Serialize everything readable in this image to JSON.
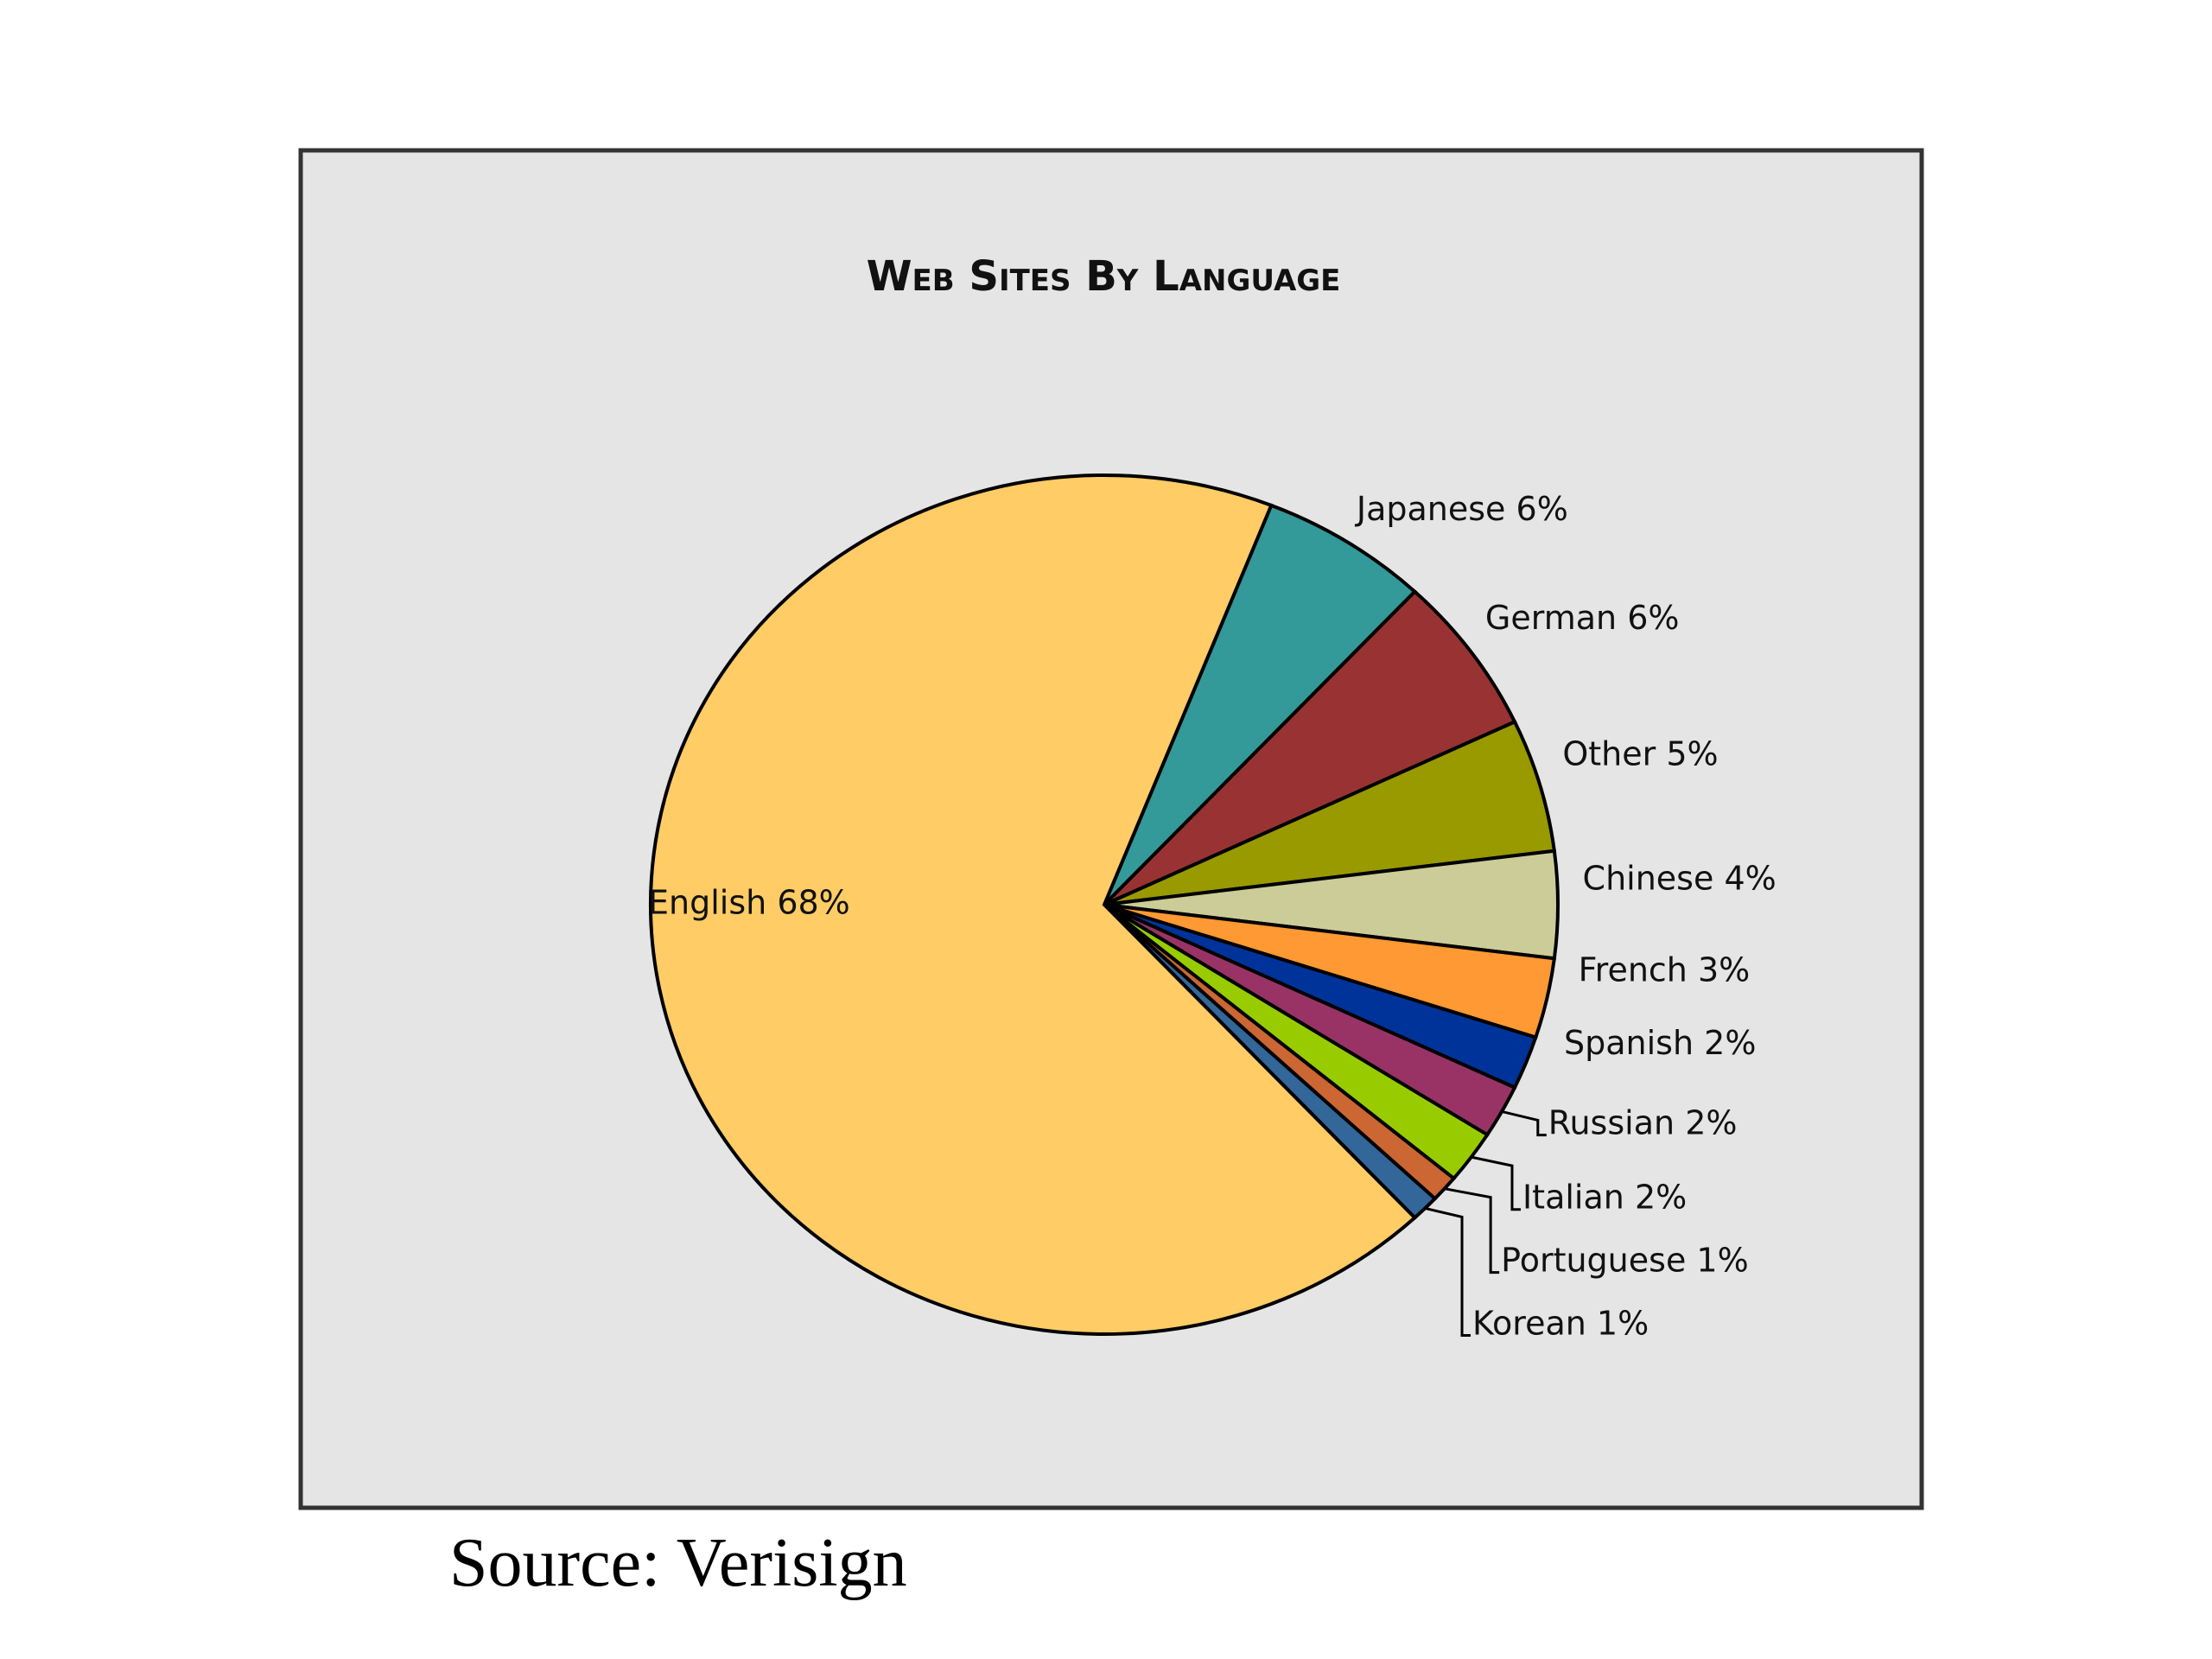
{
  "chart_data": {
    "type": "pie",
    "title": "Web Sites By Language",
    "categories": [
      "Japanese",
      "German",
      "Other",
      "Chinese",
      "French",
      "Spanish",
      "Russian",
      "Italian",
      "Portuguese",
      "Korean",
      "English"
    ],
    "values": [
      6,
      6,
      5,
      4,
      3,
      2,
      2,
      2,
      1,
      1,
      68
    ],
    "value_labels": [
      "6%",
      "6%",
      "5%",
      "4%",
      "3%",
      "2%",
      "2%",
      "2%",
      "1%",
      "1%",
      "68%"
    ],
    "colors": [
      "#339999",
      "#993333",
      "#999900",
      "#cccc99",
      "#ff9933",
      "#003399",
      "#993366",
      "#99cc00",
      "#cc6633",
      "#336699",
      "#ffcc66"
    ],
    "source": "Source: Verisign"
  }
}
